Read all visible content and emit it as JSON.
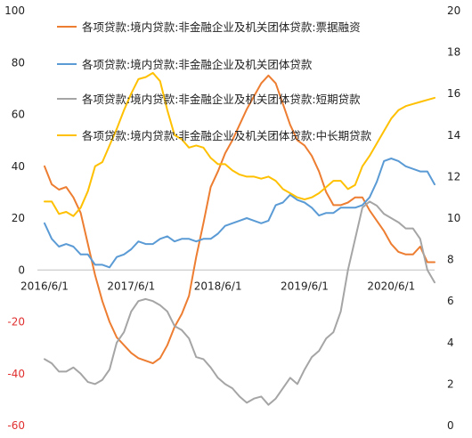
{
  "chart_data": {
    "type": "line",
    "x": [
      "2016/6/1",
      "2016/7/1",
      "2016/8/1",
      "2016/9/1",
      "2016/10/1",
      "2016/11/1",
      "2016/12/1",
      "2017/1/1",
      "2017/2/1",
      "2017/3/1",
      "2017/4/1",
      "2017/5/1",
      "2017/6/1",
      "2017/7/1",
      "2017/8/1",
      "2017/9/1",
      "2017/10/1",
      "2017/11/1",
      "2017/12/1",
      "2018/1/1",
      "2018/2/1",
      "2018/3/1",
      "2018/4/1",
      "2018/5/1",
      "2018/6/1",
      "2018/7/1",
      "2018/8/1",
      "2018/9/1",
      "2018/10/1",
      "2018/11/1",
      "2018/12/1",
      "2019/1/1",
      "2019/2/1",
      "2019/3/1",
      "2019/4/1",
      "2019/5/1",
      "2019/6/1",
      "2019/7/1",
      "2019/8/1",
      "2019/9/1",
      "2019/10/1",
      "2019/11/1",
      "2019/12/1",
      "2020/1/1",
      "2020/2/1",
      "2020/3/1",
      "2020/4/1",
      "2020/5/1",
      "2020/6/1",
      "2020/7/1",
      "2020/8/1",
      "2020/9/1",
      "2020/10/1",
      "2020/11/1",
      "2020/12/1"
    ],
    "x_tick_labels": [
      "2016/6/1",
      "2017/6/1",
      "2018/6/1",
      "2019/6/1",
      "2020/6/1"
    ],
    "x_tick_indices": [
      0,
      12,
      24,
      36,
      48
    ],
    "y_left": {
      "min": -60,
      "max": 100,
      "ticks": [
        -60,
        -40,
        -20,
        0,
        20,
        40,
        60,
        80,
        100
      ]
    },
    "y_right": {
      "min": 0,
      "max": 20,
      "ticks": [
        0,
        2,
        4,
        6,
        8,
        10,
        12,
        14,
        16,
        18,
        20
      ]
    },
    "grid": false,
    "legend_position": "top-left",
    "series": [
      {
        "name": "各项贷款:境内贷款:非金融企业及机关团体贷款:票据融资",
        "axis": "left",
        "color": "#ED7D31",
        "values": [
          40,
          33,
          31,
          32,
          28,
          22,
          10,
          -2,
          -12,
          -20,
          -26,
          -29,
          -32,
          -34,
          -35,
          -36,
          -34,
          -29,
          -22,
          -17,
          -10,
          5,
          18,
          32,
          38,
          45,
          50,
          56,
          62,
          67,
          72,
          75,
          72,
          64,
          56,
          50,
          48,
          44,
          38,
          30,
          25,
          25,
          26,
          28,
          28,
          23,
          19,
          15,
          10,
          7,
          6,
          6,
          9,
          3,
          3
        ]
      },
      {
        "name": "各项贷款:境内贷款:非金融企业及机关团体贷款",
        "axis": "left",
        "color": "#5B9BD5",
        "values": [
          18,
          12,
          9,
          10,
          9,
          6,
          6,
          2,
          2,
          1,
          5,
          6,
          8,
          11,
          10,
          10,
          12,
          13,
          11,
          12,
          12,
          11,
          12,
          12,
          14,
          17,
          18,
          19,
          20,
          19,
          18,
          19,
          25,
          26,
          29,
          27,
          26,
          24,
          21,
          22,
          22,
          24,
          24,
          24,
          25,
          28,
          34,
          42,
          43,
          42,
          40,
          39,
          38,
          38,
          33
        ]
      },
      {
        "name": "各项贷款:境内贷款:非金融企业及机关团体贷款:短期贷款",
        "axis": "right",
        "color": "#A5A5A5",
        "values": [
          3.2,
          3.0,
          2.6,
          2.6,
          2.8,
          2.5,
          2.1,
          2.0,
          2.2,
          2.7,
          4.0,
          4.5,
          5.5,
          6.0,
          6.1,
          6.0,
          5.8,
          5.5,
          4.8,
          4.6,
          4.2,
          3.3,
          3.2,
          2.8,
          2.3,
          2.0,
          1.8,
          1.4,
          1.1,
          1.3,
          1.4,
          1.0,
          1.3,
          1.8,
          2.3,
          2.0,
          2.7,
          3.3,
          3.6,
          4.2,
          4.5,
          5.5,
          7.5,
          9.0,
          10.5,
          10.8,
          10.6,
          10.2,
          10.0,
          9.8,
          9.5,
          9.5,
          9.0,
          7.5,
          6.9
        ]
      },
      {
        "name": "各项贷款:境内贷款:非金融企业及机关团体贷款:中长期贷款",
        "axis": "right",
        "color": "#FFC000",
        "values": [
          10.8,
          10.8,
          10.2,
          10.3,
          10.1,
          10.5,
          11.3,
          12.5,
          12.7,
          13.5,
          14.3,
          15.2,
          16.0,
          16.7,
          16.8,
          17.0,
          16.6,
          15.2,
          14.0,
          13.8,
          13.4,
          13.5,
          13.4,
          12.9,
          12.6,
          12.6,
          12.3,
          12.1,
          12.0,
          12.0,
          11.9,
          12.0,
          11.8,
          11.4,
          11.2,
          11.0,
          10.9,
          11.0,
          11.2,
          11.5,
          11.8,
          11.8,
          11.4,
          11.6,
          12.5,
          13.0,
          13.6,
          14.2,
          14.8,
          15.2,
          15.4,
          15.5,
          15.6,
          15.7,
          15.8
        ]
      }
    ]
  }
}
